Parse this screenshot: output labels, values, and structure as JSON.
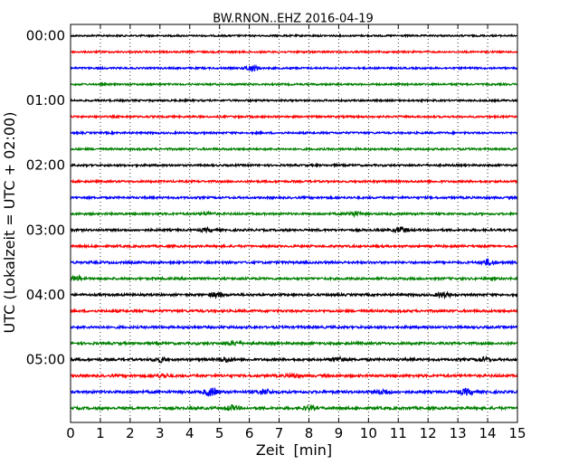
{
  "chart_data": {
    "type": "line",
    "title": "BW.RNON..EHZ 2016-04-19",
    "xlabel": "Zeit  [min]",
    "ylabel": "UTC (Lokalzeit = UTC + 02:00)",
    "xlim": [
      0,
      15
    ],
    "x_ticks": [
      "0",
      "1",
      "2",
      "3",
      "4",
      "5",
      "6",
      "7",
      "8",
      "9",
      "10",
      "11",
      "12",
      "13",
      "14",
      "15"
    ],
    "y_tick_labels": [
      "00:00",
      "01:00",
      "02:00",
      "03:00",
      "04:00",
      "05:00"
    ],
    "y_tick_rows": [
      0,
      4,
      8,
      12,
      16,
      20
    ],
    "grid": true,
    "colors": [
      "#000000",
      "#ff0000",
      "#0000ff",
      "#008000"
    ],
    "row_interval_minutes": 15,
    "rows": [
      {
        "start": "00:00",
        "events": []
      },
      {
        "start": "00:15",
        "events": []
      },
      {
        "start": "00:30",
        "events": [
          {
            "x": 6.1,
            "amp": 3.5
          }
        ]
      },
      {
        "start": "00:45",
        "events": []
      },
      {
        "start": "01:00",
        "events": []
      },
      {
        "start": "01:15",
        "events": []
      },
      {
        "start": "01:30",
        "events": []
      },
      {
        "start": "01:45",
        "events": []
      },
      {
        "start": "02:00",
        "events": []
      },
      {
        "start": "02:15",
        "events": []
      },
      {
        "start": "02:30",
        "events": []
      },
      {
        "start": "02:45",
        "events": [
          {
            "x": 9.5,
            "amp": 2.5
          },
          {
            "x": 4.6,
            "amp": 1.5
          }
        ]
      },
      {
        "start": "03:00",
        "events": [
          {
            "x": 11.1,
            "amp": 3
          },
          {
            "x": 4.6,
            "amp": 1.5
          }
        ]
      },
      {
        "start": "03:15",
        "events": []
      },
      {
        "start": "03:30",
        "events": [
          {
            "x": 14.0,
            "amp": 3
          }
        ]
      },
      {
        "start": "03:45",
        "events": [
          {
            "x": 0.2,
            "amp": 2.5
          }
        ]
      },
      {
        "start": "04:00",
        "events": [
          {
            "x": 4.9,
            "amp": 2.5
          },
          {
            "x": 12.5,
            "amp": 2.5
          }
        ]
      },
      {
        "start": "04:15",
        "events": []
      },
      {
        "start": "04:30",
        "events": []
      },
      {
        "start": "04:45",
        "events": [
          {
            "x": 5.5,
            "amp": 1.8
          }
        ]
      },
      {
        "start": "05:00",
        "events": [
          {
            "x": 3.0,
            "amp": 2.5
          },
          {
            "x": 5.2,
            "amp": 2.5
          },
          {
            "x": 9.0,
            "amp": 2.5
          },
          {
            "x": 13.9,
            "amp": 2
          }
        ]
      },
      {
        "start": "05:15",
        "events": [
          {
            "x": 3.1,
            "amp": 2
          },
          {
            "x": 7.5,
            "amp": 1.8
          }
        ]
      },
      {
        "start": "05:30",
        "events": [
          {
            "x": 4.7,
            "amp": 4.5
          },
          {
            "x": 6.5,
            "amp": 3
          },
          {
            "x": 10.5,
            "amp": 2.5
          },
          {
            "x": 13.3,
            "amp": 3
          }
        ]
      },
      {
        "start": "05:45",
        "events": [
          {
            "x": 5.4,
            "amp": 2.5
          },
          {
            "x": 8.0,
            "amp": 2
          }
        ]
      }
    ]
  }
}
